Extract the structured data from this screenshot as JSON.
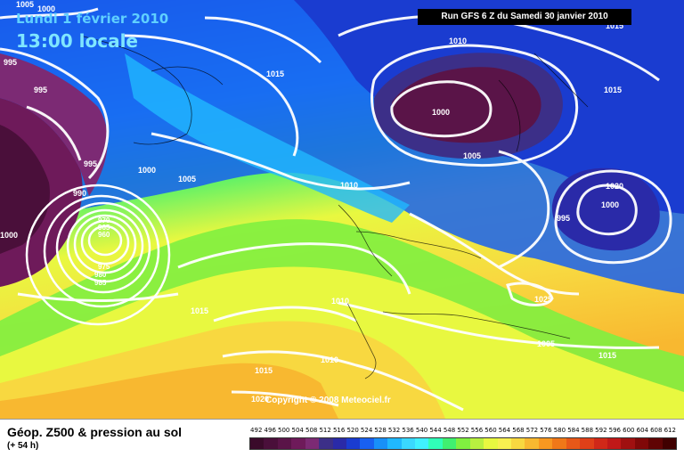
{
  "header": {
    "date": "Lundi 1 février 2010",
    "time": "13:00 locale",
    "run": "Run GFS 6 Z du Samedi 30 janvier 2010"
  },
  "copyright": "Copyright © 2008 Meteociel.fr",
  "footer": {
    "title": "Géop. Z500 & pression au sol",
    "subtitle": "(+ 54 h)"
  },
  "scale": {
    "labels": [
      "492",
      "496",
      "500",
      "504",
      "508",
      "512",
      "516",
      "520",
      "524",
      "528",
      "532",
      "536",
      "540",
      "544",
      "548",
      "552",
      "556",
      "560",
      "564",
      "568",
      "572",
      "576",
      "580",
      "584",
      "588",
      "592",
      "596",
      "600",
      "604",
      "608",
      "612"
    ],
    "colors": [
      "#3a0a2a",
      "#4a0f3a",
      "#5a1448",
      "#6e1a5a",
      "#7c2a74",
      "#3c2f88",
      "#2a2aa8",
      "#1a3cd0",
      "#1860f0",
      "#1890f8",
      "#20b8ff",
      "#3ad8ff",
      "#40f0ff",
      "#30ffb8",
      "#40f070",
      "#80f040",
      "#b8f040",
      "#e8f840",
      "#f8f050",
      "#f8d840",
      "#f8b830",
      "#f89820",
      "#f07818",
      "#e85818",
      "#e04018",
      "#d02818",
      "#c01818",
      "#a01010",
      "#800808",
      "#600404",
      "#400000"
    ]
  },
  "isobars": [
    {
      "label": "1005"
    },
    {
      "label": "1000"
    },
    {
      "label": "995"
    },
    {
      "label": "995"
    },
    {
      "label": "995"
    },
    {
      "label": "1000"
    },
    {
      "label": "990"
    },
    {
      "label": "1000"
    },
    {
      "label": "970"
    },
    {
      "label": "965"
    },
    {
      "label": "960"
    },
    {
      "label": "975"
    },
    {
      "label": "980"
    },
    {
      "label": "985"
    },
    {
      "label": "1015"
    },
    {
      "label": "1005"
    },
    {
      "label": "1010"
    },
    {
      "label": "1015"
    },
    {
      "label": "1010"
    },
    {
      "label": "1000"
    },
    {
      "label": "1005"
    },
    {
      "label": "1015"
    },
    {
      "label": "1020"
    },
    {
      "label": "1000"
    },
    {
      "label": "995"
    },
    {
      "label": "1005"
    },
    {
      "label": "1010"
    },
    {
      "label": "1025"
    },
    {
      "label": "1015"
    },
    {
      "label": "1010"
    },
    {
      "label": "1015"
    },
    {
      "label": "1020"
    },
    {
      "label": "1015"
    },
    {
      "label": "1015"
    }
  ]
}
